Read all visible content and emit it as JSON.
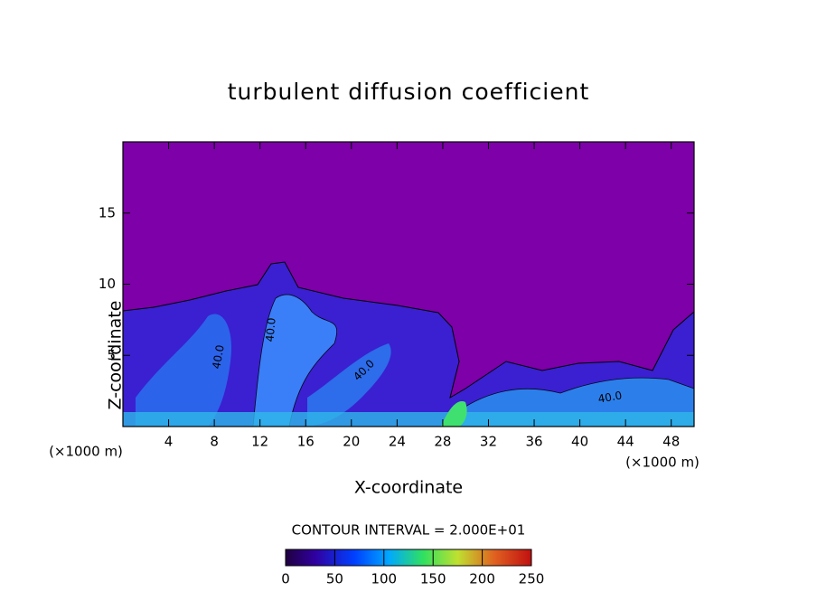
{
  "chart_data": {
    "type": "contour",
    "title": "turbulent diffusion coefficient",
    "x_label": "X-coordinate",
    "y_label": "Z-coordinate",
    "x_unit": "(×1000 m)",
    "y_unit": "(×1000 m)",
    "xlim": [
      0,
      50
    ],
    "ylim": [
      0,
      20
    ],
    "xticks": [
      4,
      8,
      12,
      16,
      20,
      24,
      28,
      32,
      36,
      40,
      44,
      48
    ],
    "yticks": [
      5,
      10,
      15
    ],
    "contour_interval": "CONTOUR INTERVAL = 2.000E+01",
    "contour_labels": [
      "40.0",
      "40.0",
      "40.0",
      "40.0"
    ],
    "colorbar": {
      "lim": [
        0,
        250
      ],
      "ticks": [
        0,
        50,
        100,
        150,
        200,
        250
      ]
    }
  }
}
